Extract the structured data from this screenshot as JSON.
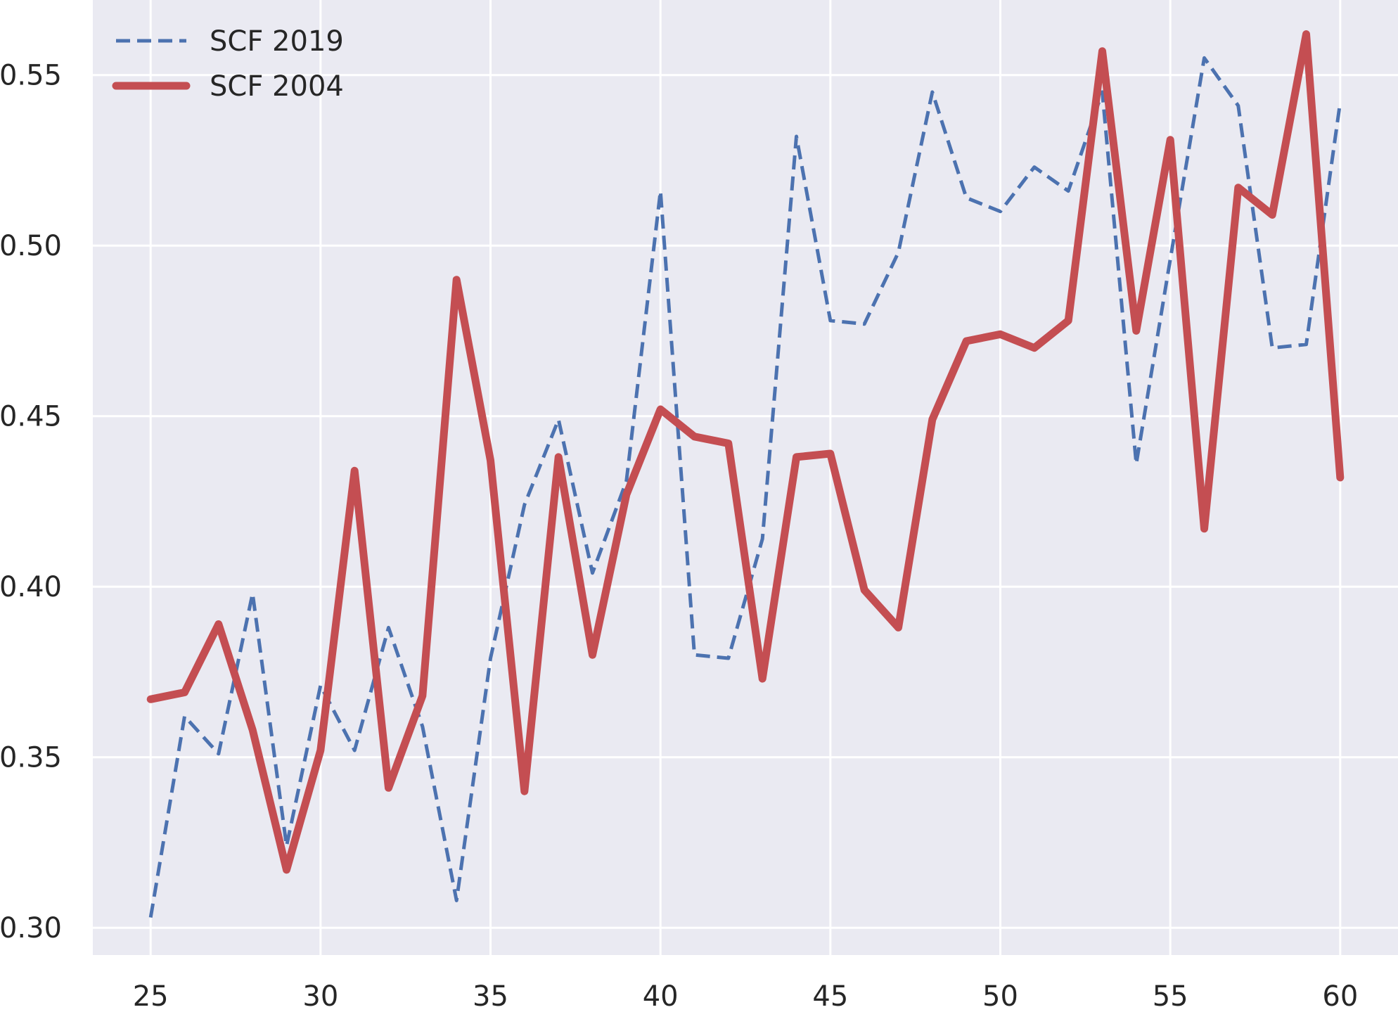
{
  "chart_data": {
    "type": "line",
    "title": "",
    "xlabel": "",
    "ylabel": "",
    "x": [
      25,
      26,
      27,
      28,
      29,
      30,
      31,
      32,
      33,
      34,
      35,
      36,
      37,
      38,
      39,
      40,
      41,
      42,
      43,
      44,
      45,
      46,
      47,
      48,
      49,
      50,
      51,
      52,
      53,
      54,
      55,
      56,
      57,
      58,
      59,
      60
    ],
    "xlim": [
      23.3,
      61.7
    ],
    "ylim": [
      0.292,
      0.572
    ],
    "xticks": [
      25,
      30,
      35,
      40,
      45,
      50,
      55,
      60
    ],
    "yticks": [
      0.3,
      0.35,
      0.4,
      0.45,
      0.5,
      0.55
    ],
    "xtick_labels": [
      "25",
      "30",
      "35",
      "40",
      "45",
      "50",
      "55",
      "60"
    ],
    "ytick_labels": [
      "0.30",
      "0.35",
      "0.40",
      "0.45",
      "0.50",
      "0.55"
    ],
    "grid": true,
    "background": "#EAEAF2",
    "legend_position": "top-left",
    "series": [
      {
        "name": "SCF 2019",
        "style": "dashed",
        "color": "#4C72B0",
        "values": [
          0.303,
          0.362,
          0.351,
          0.398,
          0.324,
          0.371,
          0.352,
          0.388,
          0.359,
          0.308,
          0.379,
          0.424,
          0.449,
          0.404,
          0.431,
          0.516,
          0.38,
          0.379,
          0.414,
          0.532,
          0.478,
          0.477,
          0.498,
          0.545,
          0.514,
          0.51,
          0.523,
          0.516,
          0.545,
          0.436,
          0.496,
          0.555,
          0.541,
          0.47,
          0.471,
          0.542
        ]
      },
      {
        "name": "SCF 2004",
        "style": "solid",
        "color": "#C44E52",
        "values": [
          0.367,
          0.369,
          0.389,
          0.358,
          0.317,
          0.352,
          0.434,
          0.341,
          0.368,
          0.49,
          0.437,
          0.34,
          0.438,
          0.38,
          0.427,
          0.452,
          0.444,
          0.442,
          0.373,
          0.438,
          0.439,
          0.399,
          0.388,
          0.449,
          0.472,
          0.474,
          0.47,
          0.478,
          0.557,
          0.475,
          0.531,
          0.417,
          0.517,
          0.509,
          0.562,
          0.432
        ]
      }
    ]
  }
}
